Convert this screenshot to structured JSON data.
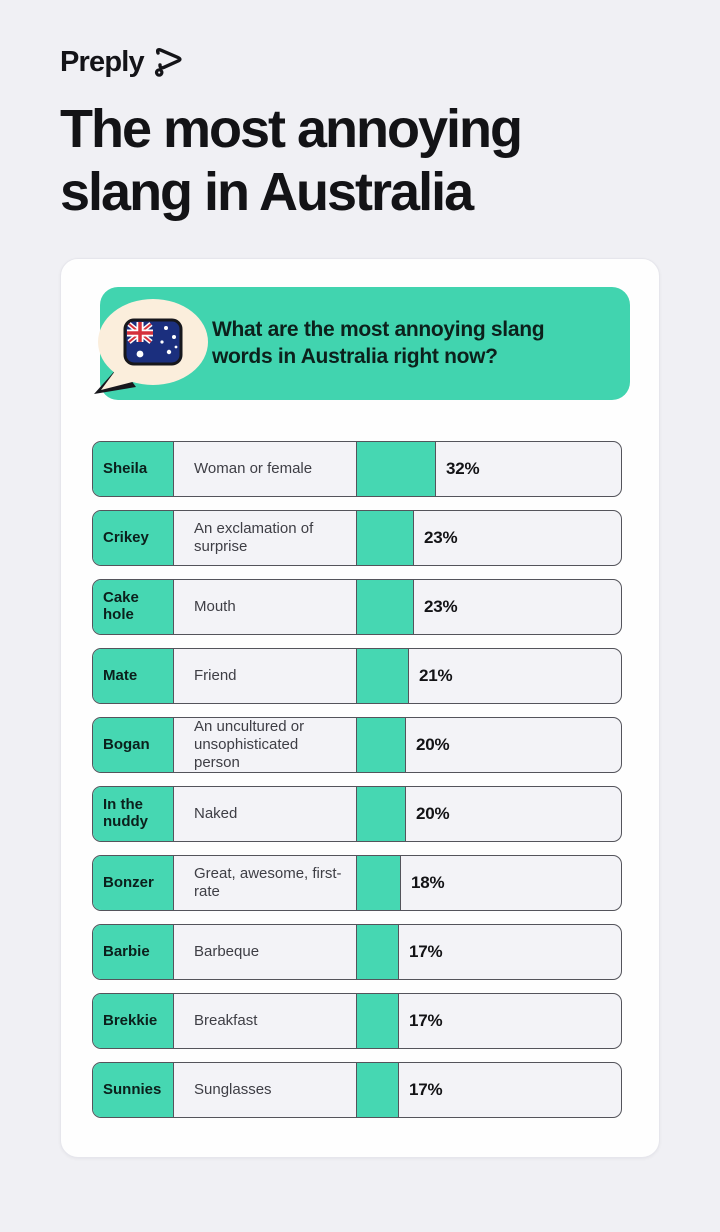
{
  "page": {
    "background": "#F0F0F4",
    "accent_teal": "#41D4AF",
    "bar_teal": "#46D7B2",
    "bubble_cream": "#FBEEDC"
  },
  "brand": {
    "name": "Preply"
  },
  "title": {
    "line1": "The most annoying",
    "line2": "slang in Australia"
  },
  "question": {
    "line1": "What are the most annoying slang",
    "line2": "words in Australia right now?"
  },
  "chart_data": {
    "type": "bar",
    "orientation": "horizontal",
    "title": "What are the most annoying slang words in Australia right now?",
    "categories": [
      "Sheila",
      "Crikey",
      "Cake hole",
      "Mate",
      "Bogan",
      "In the nuddy",
      "Bonzer",
      "Barbie",
      "Brekkie",
      "Sunnies"
    ],
    "definitions": [
      "Woman or female",
      "An exclamation of surprise",
      "Mouth",
      "Friend",
      "An uncultured or unsophisticated person",
      "Naked",
      "Great, awesome, first-rate",
      "Barbeque",
      "Breakfast",
      "Sunglasses"
    ],
    "values": [
      32,
      23,
      23,
      21,
      20,
      20,
      18,
      17,
      17,
      17
    ],
    "value_suffix": "%",
    "value_labels": [
      "32%",
      "23%",
      "23%",
      "21%",
      "20%",
      "20%",
      "18%",
      "17%",
      "17%",
      "17%"
    ],
    "xlim": [
      0,
      100
    ],
    "bar_color": "#46D7B2",
    "grid": false,
    "legend": false
  }
}
